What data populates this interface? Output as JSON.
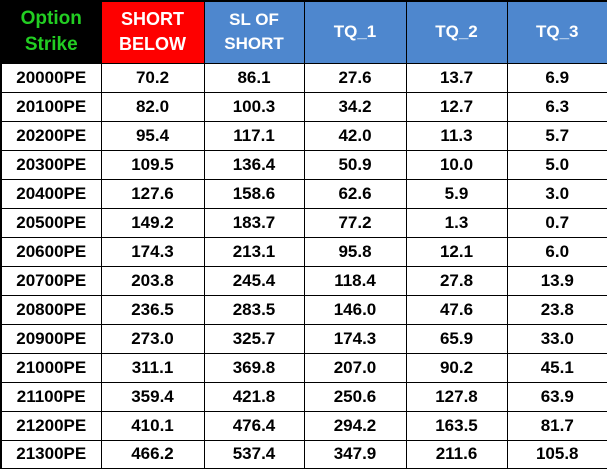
{
  "colors": {
    "strike_header_bg": "#000000",
    "strike_header_text": "#22CE22",
    "short_header_bg": "#FE0000",
    "blue_header_bg": "#4E87CE",
    "header_text": "#FFFFFF",
    "grid_line": "#000000",
    "cell_bg": "#FFFFFF",
    "cell_text": "#000000"
  },
  "header": {
    "option_strike": {
      "line1": "Option",
      "line2": "Strike"
    },
    "short_below": {
      "line1": "SHORT",
      "line2": "BELOW"
    },
    "sl_of_short": {
      "line1": "SL OF",
      "line2": "SHORT"
    },
    "tq_1": "TQ_1",
    "tq_2": "TQ_2",
    "tq_3": "TQ_3"
  },
  "rows": [
    {
      "strike": "20000PE",
      "short_below": "70.2",
      "sl_of_short": "86.1",
      "tq_1": "27.6",
      "tq_2": "13.7",
      "tq_3": "6.9"
    },
    {
      "strike": "20100PE",
      "short_below": "82.0",
      "sl_of_short": "100.3",
      "tq_1": "34.2",
      "tq_2": "12.7",
      "tq_3": "6.3"
    },
    {
      "strike": "20200PE",
      "short_below": "95.4",
      "sl_of_short": "117.1",
      "tq_1": "42.0",
      "tq_2": "11.3",
      "tq_3": "5.7"
    },
    {
      "strike": "20300PE",
      "short_below": "109.5",
      "sl_of_short": "136.4",
      "tq_1": "50.9",
      "tq_2": "10.0",
      "tq_3": "5.0"
    },
    {
      "strike": "20400PE",
      "short_below": "127.6",
      "sl_of_short": "158.6",
      "tq_1": "62.6",
      "tq_2": "5.9",
      "tq_3": "3.0"
    },
    {
      "strike": "20500PE",
      "short_below": "149.2",
      "sl_of_short": "183.7",
      "tq_1": "77.2",
      "tq_2": "1.3",
      "tq_3": "0.7"
    },
    {
      "strike": "20600PE",
      "short_below": "174.3",
      "sl_of_short": "213.1",
      "tq_1": "95.8",
      "tq_2": "12.1",
      "tq_3": "6.0"
    },
    {
      "strike": "20700PE",
      "short_below": "203.8",
      "sl_of_short": "245.4",
      "tq_1": "118.4",
      "tq_2": "27.8",
      "tq_3": "13.9"
    },
    {
      "strike": "20800PE",
      "short_below": "236.5",
      "sl_of_short": "283.5",
      "tq_1": "146.0",
      "tq_2": "47.6",
      "tq_3": "23.8"
    },
    {
      "strike": "20900PE",
      "short_below": "273.0",
      "sl_of_short": "325.7",
      "tq_1": "174.3",
      "tq_2": "65.9",
      "tq_3": "33.0"
    },
    {
      "strike": "21000PE",
      "short_below": "311.1",
      "sl_of_short": "369.8",
      "tq_1": "207.0",
      "tq_2": "90.2",
      "tq_3": "45.1"
    },
    {
      "strike": "21100PE",
      "short_below": "359.4",
      "sl_of_short": "421.8",
      "tq_1": "250.6",
      "tq_2": "127.8",
      "tq_3": "63.9"
    },
    {
      "strike": "21200PE",
      "short_below": "410.1",
      "sl_of_short": "476.4",
      "tq_1": "294.2",
      "tq_2": "163.5",
      "tq_3": "81.7"
    },
    {
      "strike": "21300PE",
      "short_below": "466.2",
      "sl_of_short": "537.4",
      "tq_1": "347.9",
      "tq_2": "211.6",
      "tq_3": "105.8"
    }
  ]
}
